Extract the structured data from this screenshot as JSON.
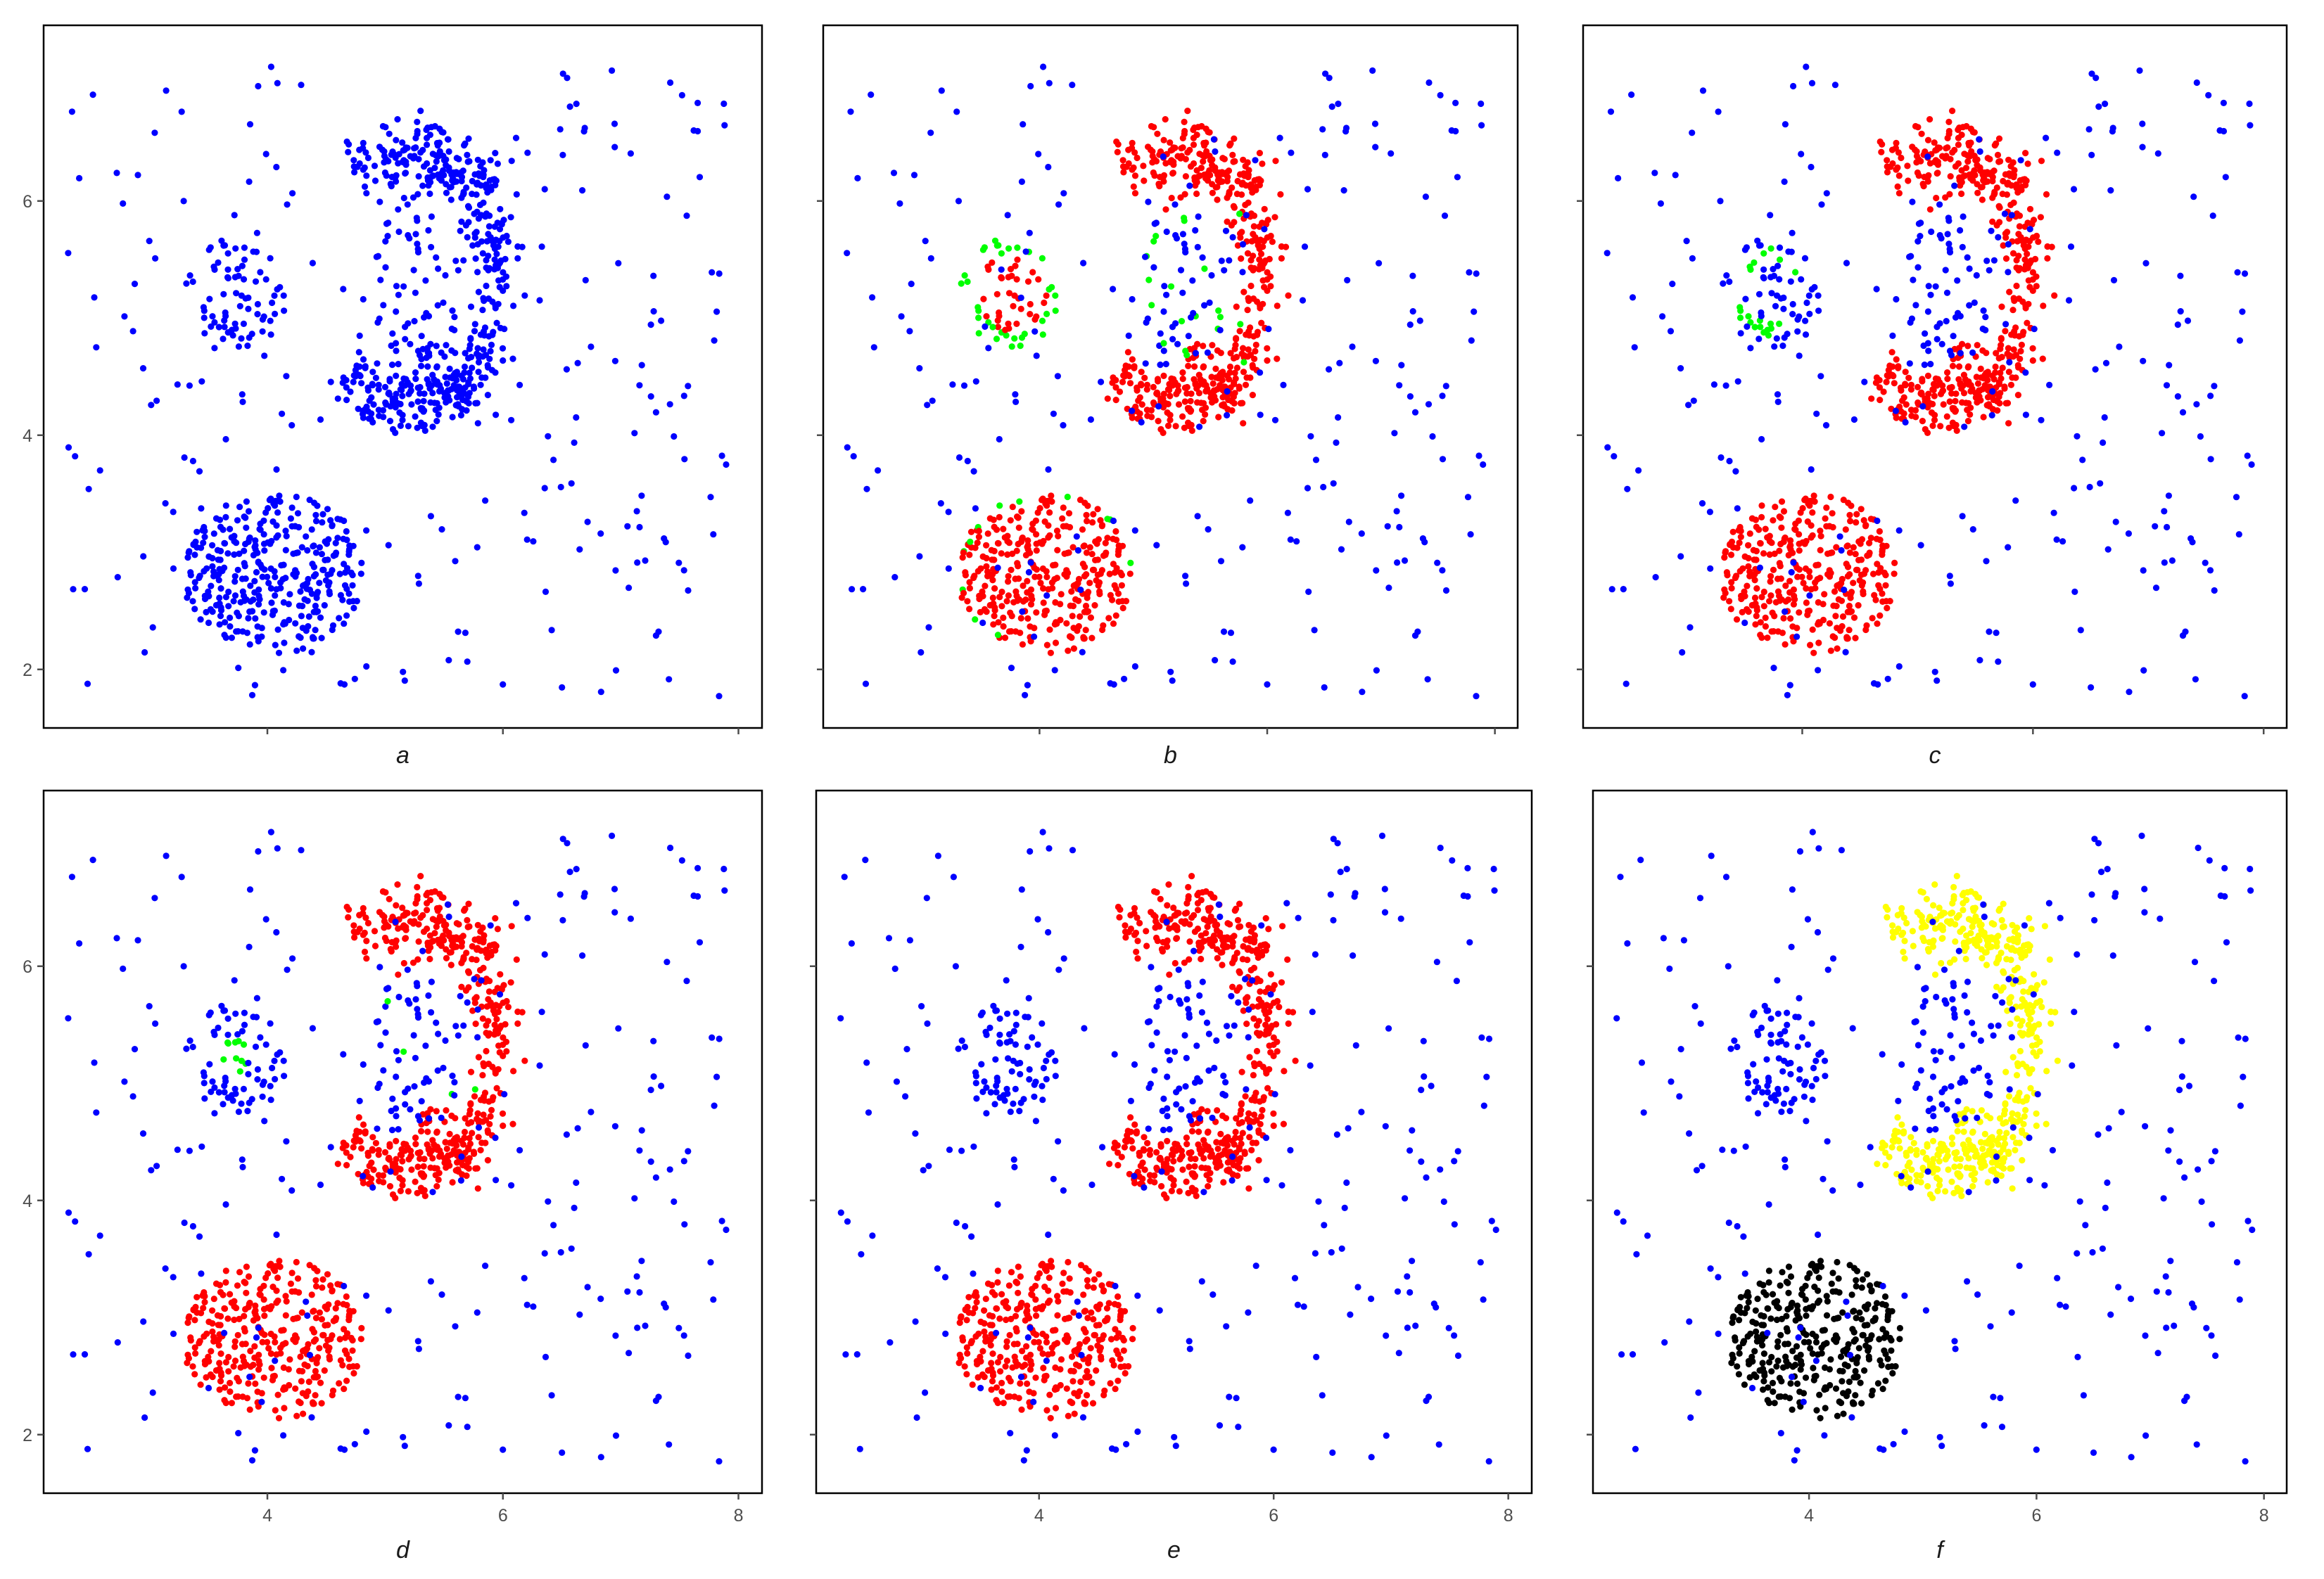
{
  "palette": {
    "noise": "#0000ff",
    "core": "#ff0000",
    "border": "#00ff00",
    "cluster_yellow": "#ffff00",
    "cluster_black": "#000000",
    "cluster_blue": "#0000ff"
  },
  "chart_data": [
    {
      "type": "scatter",
      "label": "a",
      "xlim": [
        2.1,
        8.2
      ],
      "ylim": [
        1.5,
        7.5
      ],
      "x_ticks": [],
      "y_ticks": [
        "2",
        "4",
        "6"
      ],
      "legend": "none",
      "grid": false,
      "groups": [
        {
          "name": "",
          "color": "noise",
          "points": "all"
        }
      ]
    },
    {
      "type": "scatter",
      "label": "b",
      "xlim": [
        2.1,
        8.2
      ],
      "ylim": [
        1.5,
        7.5
      ],
      "x_ticks": [],
      "y_ticks": [],
      "legend": "none",
      "grid": false,
      "groups": [
        {
          "name": "",
          "color": "core",
          "points": "dense clusters"
        },
        {
          "name": "",
          "color": "border",
          "points": "cluster edges"
        },
        {
          "name": "",
          "color": "noise",
          "points": "remaining"
        }
      ]
    },
    {
      "type": "scatter",
      "label": "c",
      "xlim": [
        2.1,
        8.2
      ],
      "ylim": [
        1.5,
        7.5
      ],
      "x_ticks": [],
      "y_ticks": [],
      "legend": "none",
      "grid": false,
      "groups": [
        {
          "name": "",
          "color": "core",
          "points": "bottom blob and arc"
        },
        {
          "name": "",
          "color": "border",
          "points": "small cluster edge"
        },
        {
          "name": "",
          "color": "noise",
          "points": "remaining"
        }
      ]
    },
    {
      "type": "scatter",
      "label": "d",
      "xlim": [
        2.1,
        8.2
      ],
      "ylim": [
        1.5,
        7.5
      ],
      "x_ticks": [
        "4",
        "6",
        "8"
      ],
      "y_ticks": [
        "2",
        "4",
        "6"
      ],
      "legend": "none",
      "grid": false,
      "groups": [
        {
          "name": "",
          "color": "core",
          "points": "bottom blob and arc"
        },
        {
          "name": "",
          "color": "border",
          "points": "few points"
        },
        {
          "name": "",
          "color": "noise",
          "points": "remaining"
        }
      ]
    },
    {
      "type": "scatter",
      "label": "e",
      "xlim": [
        2.1,
        8.2
      ],
      "ylim": [
        1.5,
        7.5
      ],
      "x_ticks": [
        "4",
        "6",
        "8"
      ],
      "y_ticks": [],
      "legend": "none",
      "grid": false,
      "groups": [
        {
          "name": "",
          "color": "core",
          "points": "bottom blob and arc"
        },
        {
          "name": "",
          "color": "noise",
          "points": "remaining"
        }
      ]
    },
    {
      "type": "scatter",
      "label": "f",
      "xlim": [
        2.1,
        8.2
      ],
      "ylim": [
        1.5,
        7.5
      ],
      "x_ticks": [
        "4",
        "6",
        "8"
      ],
      "y_ticks": [],
      "legend": "none",
      "grid": false,
      "groups": [
        {
          "name": "",
          "color": "cluster_black",
          "points": "bottom blob"
        },
        {
          "name": "",
          "color": "cluster_yellow",
          "points": "arc"
        },
        {
          "name": "",
          "color": "cluster_blue",
          "points": "remaining"
        }
      ]
    }
  ]
}
